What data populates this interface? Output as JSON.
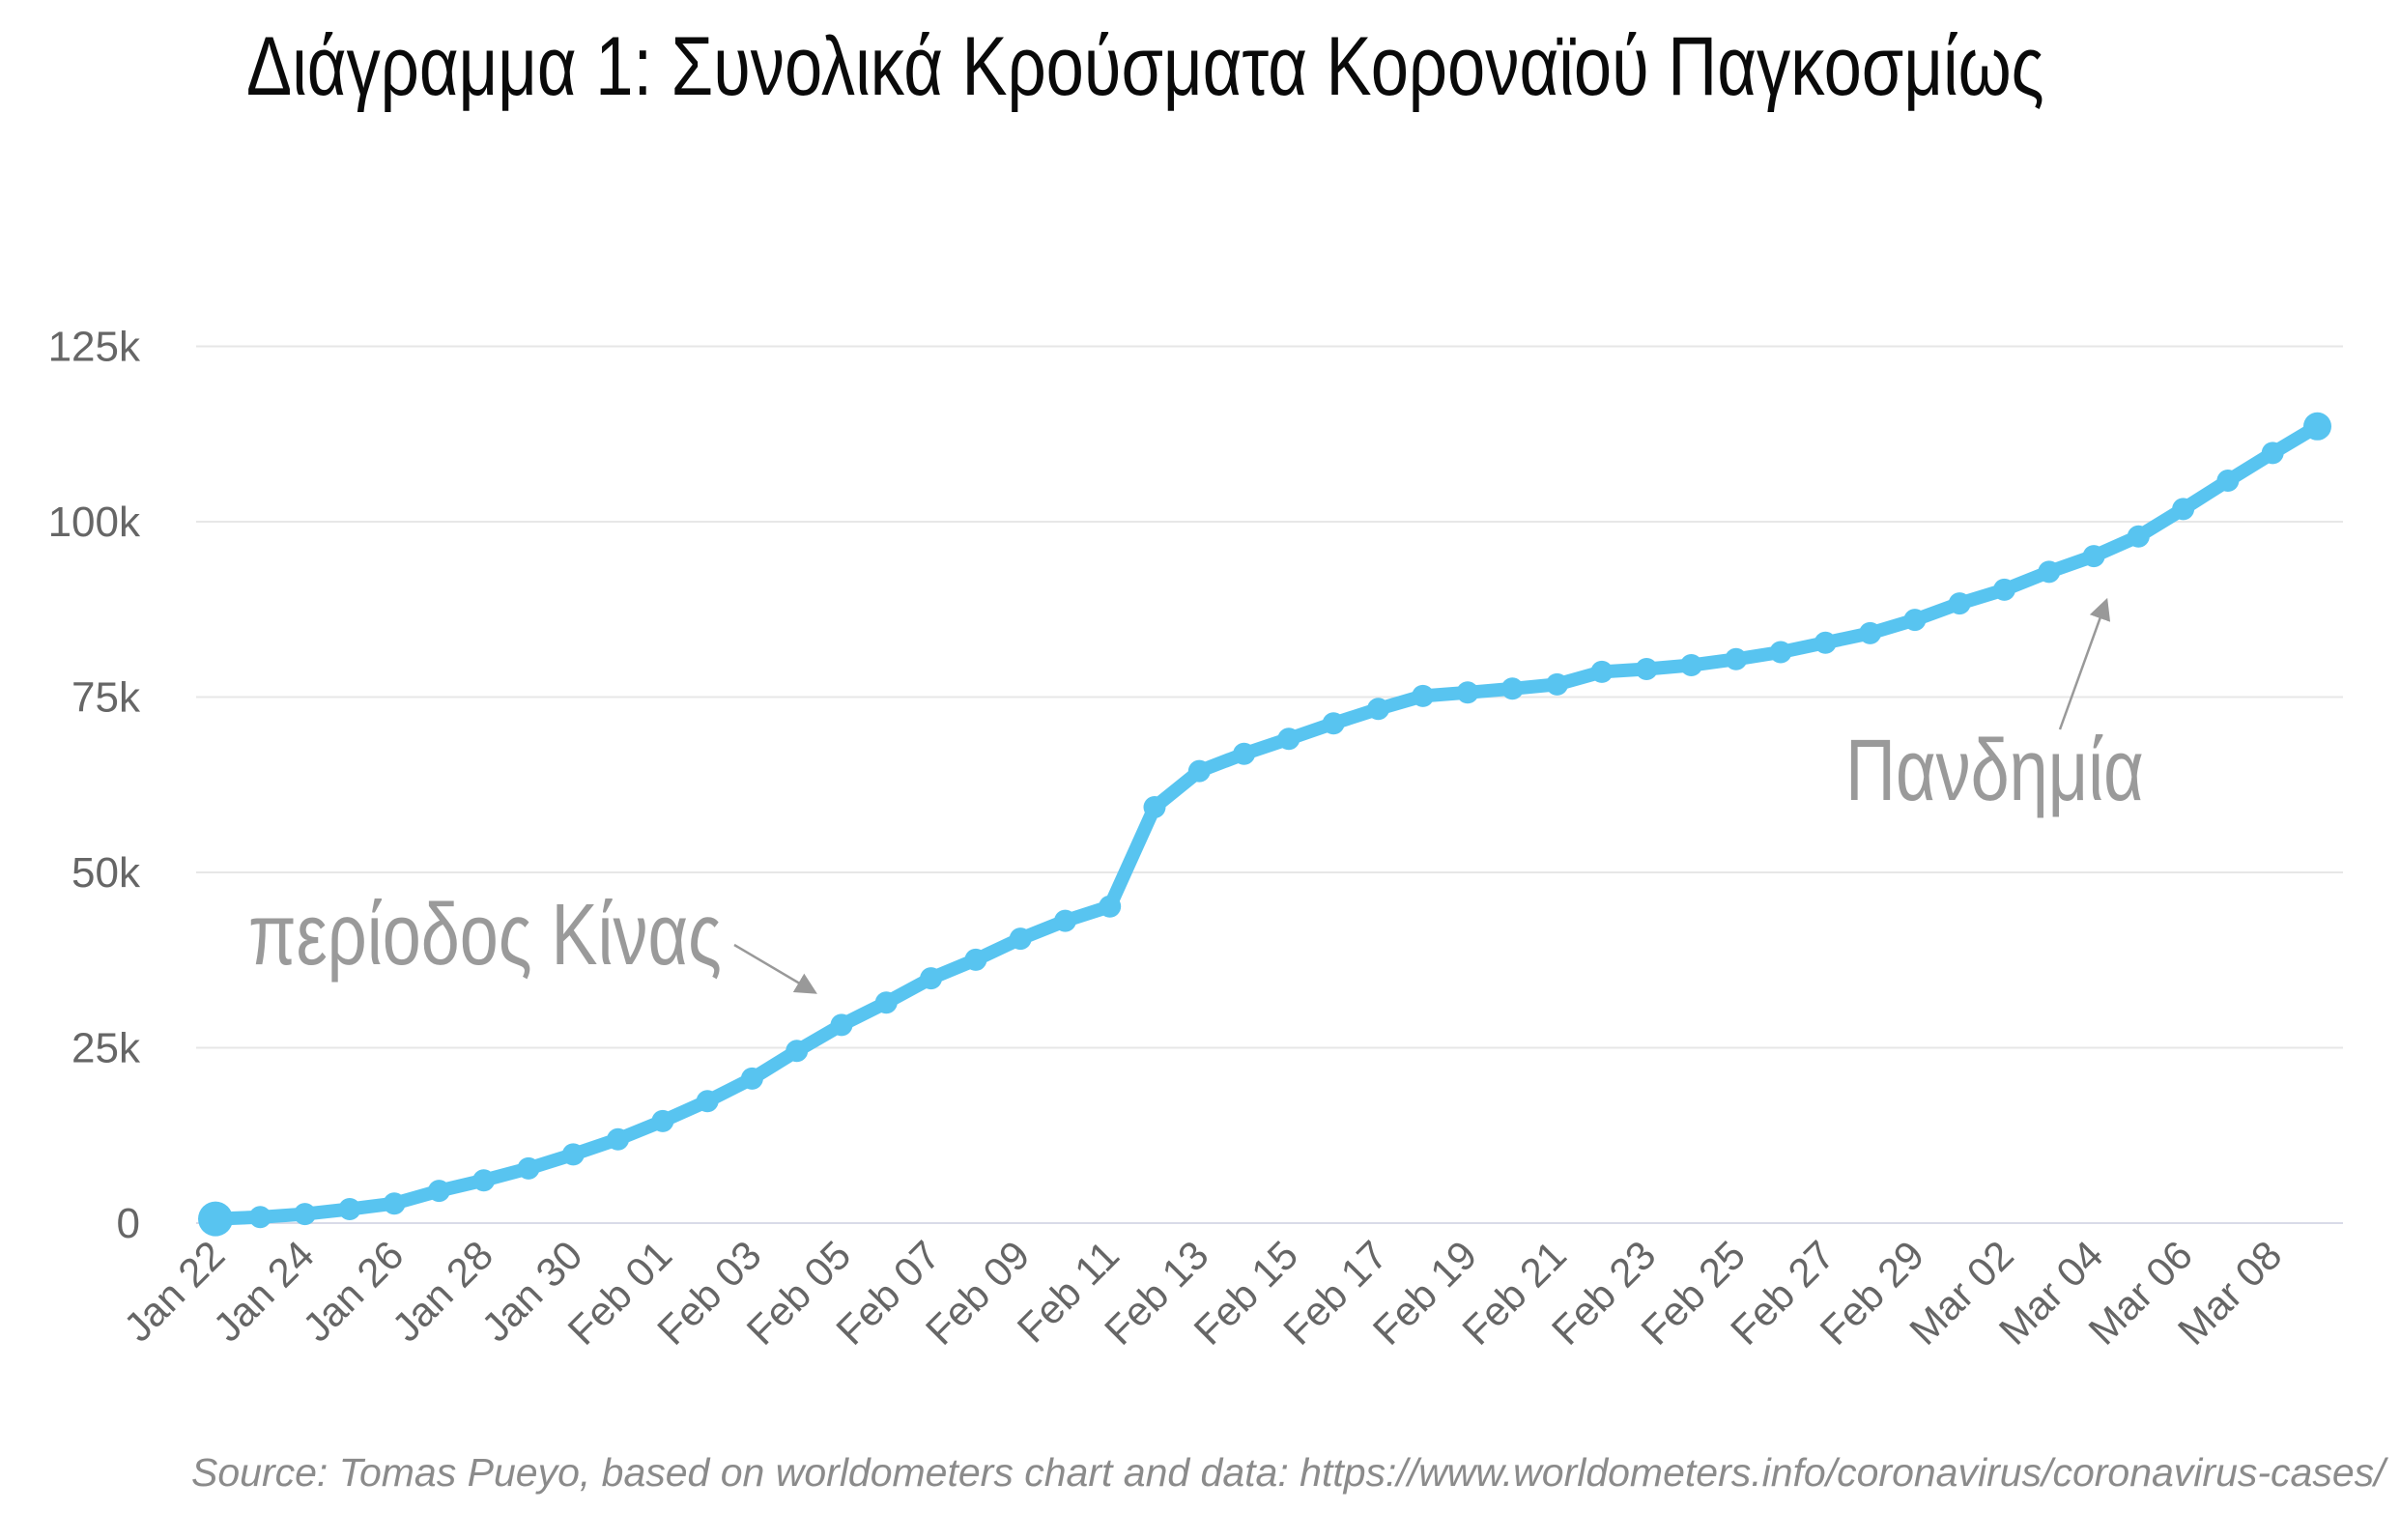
{
  "title": "Διάγραμμα 1: Συνολικά Κρούσματα Κοροναϊού Παγκοσμίως",
  "source": "Source: Tomas Pueyo, based on worldometers chart and data: https://www.worldometers.info/coronavirus/coronavirus-cases/",
  "colors": {
    "series": "#58c4f0",
    "grid": "#e7e7e7",
    "baseline_grid": "#d9dbe8",
    "axis_label": "#666666",
    "annotation": "#9a9a9a",
    "arrow": "#999999",
    "title_text": "#0a0a0a",
    "source_text": "#8b8b8b"
  },
  "chart_data": {
    "type": "line",
    "title": "Διάγραμμα 1: Συνολικά Κρούσματα Κοροναϊού Παγκοσμίως",
    "xlabel": "",
    "ylabel": "",
    "ylim": [
      0,
      125000
    ],
    "grid": "horizontal-only",
    "legend": "none",
    "marker": "circle",
    "x": [
      "Jan 22",
      "Jan 23",
      "Jan 24",
      "Jan 25",
      "Jan 26",
      "Jan 27",
      "Jan 28",
      "Jan 29",
      "Jan 30",
      "Jan 31",
      "Feb 01",
      "Feb 02",
      "Feb 03",
      "Feb 04",
      "Feb 05",
      "Feb 06",
      "Feb 07",
      "Feb 08",
      "Feb 09",
      "Feb 10",
      "Feb 11",
      "Feb 12",
      "Feb 13",
      "Feb 14",
      "Feb 15",
      "Feb 16",
      "Feb 17",
      "Feb 18",
      "Feb 19",
      "Feb 20",
      "Feb 21",
      "Feb 22",
      "Feb 23",
      "Feb 24",
      "Feb 25",
      "Feb 26",
      "Feb 27",
      "Feb 28",
      "Feb 29",
      "Mar 01",
      "Mar 02",
      "Mar 03",
      "Mar 04",
      "Mar 05",
      "Mar 06",
      "Mar 07",
      "Mar 08",
      "Mar 09"
    ],
    "values": [
      600,
      850,
      1300,
      2000,
      2800,
      4600,
      6100,
      7800,
      9800,
      11950,
      14550,
      17400,
      20600,
      24550,
      28250,
      31450,
      34900,
      37550,
      40550,
      43100,
      45150,
      59300,
      64450,
      66900,
      69050,
      71250,
      73300,
      75150,
      75650,
      76200,
      76800,
      78600,
      79000,
      79550,
      80400,
      81400,
      82750,
      84100,
      86000,
      88350,
      90300,
      92850,
      95100,
      97900,
      101800,
      105850,
      109800,
      113600
    ],
    "x_tick_step": 2,
    "y_ticks": [
      0,
      25000,
      50000,
      75000,
      100000,
      125000
    ],
    "y_tick_labels": [
      "0",
      "25k",
      "50k",
      "75k",
      "100k",
      "125k"
    ],
    "annotations": [
      {
        "label": "περίοδος Κίνας"
      },
      {
        "label": "Πανδημία"
      }
    ]
  }
}
